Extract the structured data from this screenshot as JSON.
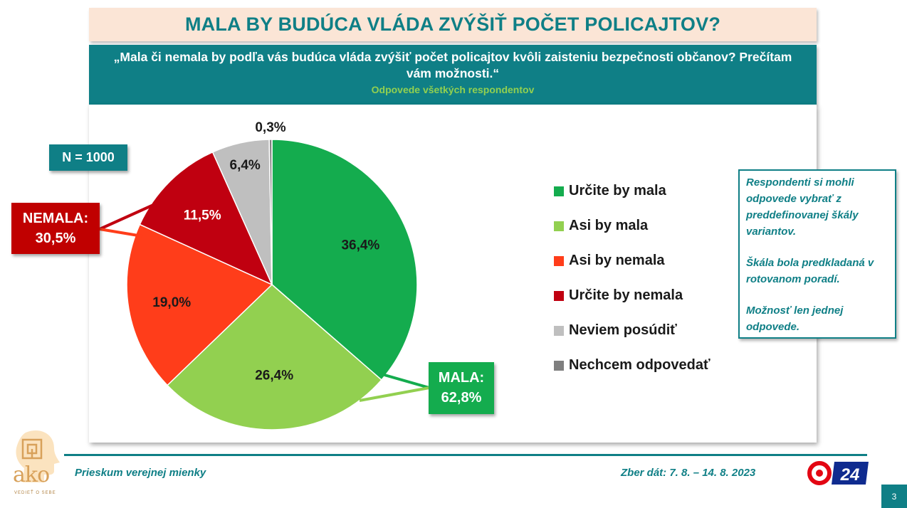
{
  "header": {
    "title": "MALA BY BUDÚCA VLÁDA ZVÝŠIŤ POČET POLICAJTOV?",
    "question": "„Mala či nemala by podľa vás budúca vláda zvýšiť počet policajtov kvôli zaisteniu bezpečnosti občanov? Prečítam vám možnosti.“",
    "subtitle": "Odpovede všetkých respondentov"
  },
  "sample": {
    "label": "N = 1000"
  },
  "groups": {
    "nemala_label": "NEMALA:",
    "nemala_value": "30,5%",
    "mala_label": "MALA:",
    "mala_value": "62,8%"
  },
  "note": {
    "p1": "Respondenti si mohli odpovede vybrať z preddefinovanej škály variantov.",
    "p2": "Škála bola predkladaná v rotovanom poradí.",
    "p3": "Možnosť len jednej odpovede."
  },
  "footer": {
    "left": "Prieskum verejnej mienky",
    "right": "Zber dát: 7. 8. – 14. 8. 2023",
    "page": "3"
  },
  "logos": {
    "ako_text": "ako",
    "ako_sub": "VEDIEŤ O SEBE",
    "tv_text": "24"
  },
  "chart_data": {
    "type": "pie",
    "start": "top",
    "direction": "clockwise",
    "slices": [
      {
        "name": "Určite by mala",
        "value": 36.4,
        "label": "36,4%",
        "color": "#14ac4e",
        "text_color": "#1a1a1a"
      },
      {
        "name": "Asi by mala",
        "value": 26.4,
        "label": "26,4%",
        "color": "#92d050",
        "text_color": "#1a1a1a"
      },
      {
        "name": "Asi by nemala",
        "value": 19.0,
        "label": "19,0%",
        "color": "#ff3d1a",
        "text_color": "#1a1a1a"
      },
      {
        "name": "Určite by nemala",
        "value": 11.5,
        "label": "11,5%",
        "color": "#c00010",
        "text_color": "#ffffff"
      },
      {
        "name": "Neviem posúdiť",
        "value": 6.4,
        "label": "6,4%",
        "color": "#bfbfbf",
        "text_color": "#1a1a1a"
      },
      {
        "name": "Nechcem odpovedať",
        "value": 0.3,
        "label": "0,3%",
        "color": "#7f7f7f",
        "text_color": "#1a1a1a"
      }
    ]
  }
}
